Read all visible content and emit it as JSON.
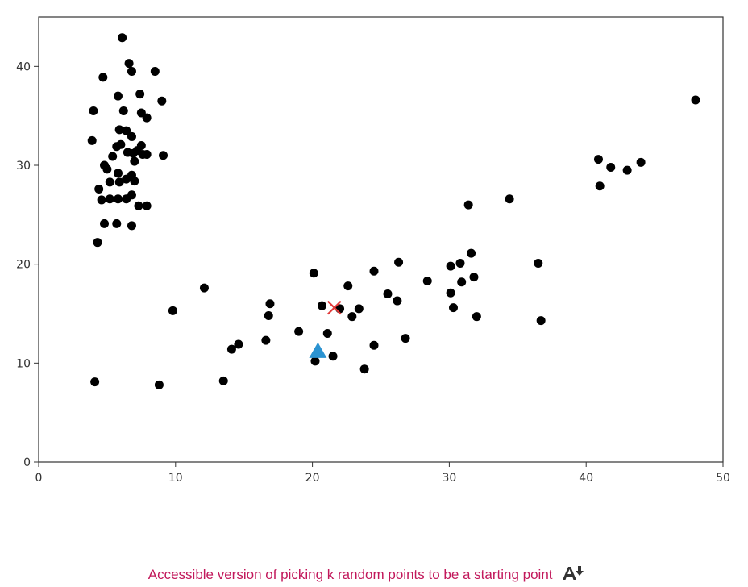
{
  "chart_data": {
    "type": "scatter",
    "title": "",
    "xlabel": "",
    "ylabel": "",
    "xlim": [
      0,
      50
    ],
    "ylim": [
      0,
      45
    ],
    "xticks": [
      0,
      10,
      20,
      30,
      40,
      50
    ],
    "yticks": [
      0,
      10,
      20,
      30,
      40
    ],
    "grid": false,
    "colors": {
      "points": "#000000",
      "triangle": "#2b93d1",
      "cross": "#e23b3b",
      "frame": "#333333"
    },
    "points": [
      [
        6.1,
        42.9
      ],
      [
        6.6,
        40.3
      ],
      [
        6.8,
        39.5
      ],
      [
        8.5,
        39.5
      ],
      [
        4.7,
        38.9
      ],
      [
        5.8,
        37.0
      ],
      [
        7.4,
        37.2
      ],
      [
        9.0,
        36.5
      ],
      [
        4.0,
        35.5
      ],
      [
        6.2,
        35.5
      ],
      [
        7.5,
        35.3
      ],
      [
        7.9,
        34.8
      ],
      [
        5.9,
        33.6
      ],
      [
        6.4,
        33.5
      ],
      [
        6.8,
        32.9
      ],
      [
        3.9,
        32.5
      ],
      [
        6.0,
        32.1
      ],
      [
        5.7,
        31.9
      ],
      [
        7.5,
        32.0
      ],
      [
        7.2,
        31.5
      ],
      [
        6.5,
        31.3
      ],
      [
        6.9,
        31.2
      ],
      [
        7.6,
        31.1
      ],
      [
        7.9,
        31.1
      ],
      [
        5.4,
        30.9
      ],
      [
        9.1,
        31.0
      ],
      [
        7.0,
        30.4
      ],
      [
        4.8,
        30.0
      ],
      [
        5.0,
        29.6
      ],
      [
        5.8,
        29.2
      ],
      [
        6.8,
        29.0
      ],
      [
        6.4,
        28.6
      ],
      [
        7.0,
        28.4
      ],
      [
        5.2,
        28.3
      ],
      [
        5.9,
        28.3
      ],
      [
        4.4,
        27.6
      ],
      [
        6.8,
        27.0
      ],
      [
        5.2,
        26.6
      ],
      [
        5.8,
        26.6
      ],
      [
        4.6,
        26.5
      ],
      [
        6.4,
        26.6
      ],
      [
        7.3,
        25.9
      ],
      [
        7.9,
        25.9
      ],
      [
        4.8,
        24.1
      ],
      [
        5.7,
        24.1
      ],
      [
        6.8,
        23.9
      ],
      [
        4.3,
        22.2
      ],
      [
        4.1,
        8.1
      ],
      [
        8.8,
        7.8
      ],
      [
        9.8,
        15.3
      ],
      [
        12.1,
        17.6
      ],
      [
        13.5,
        8.2
      ],
      [
        14.1,
        11.4
      ],
      [
        14.6,
        11.9
      ],
      [
        16.6,
        12.3
      ],
      [
        16.8,
        14.8
      ],
      [
        16.9,
        16.0
      ],
      [
        19.0,
        13.2
      ],
      [
        20.1,
        19.1
      ],
      [
        20.2,
        10.2
      ],
      [
        20.7,
        15.8
      ],
      [
        21.1,
        13.0
      ],
      [
        21.5,
        10.7
      ],
      [
        22.0,
        15.5
      ],
      [
        22.6,
        17.8
      ],
      [
        22.9,
        14.7
      ],
      [
        23.4,
        15.5
      ],
      [
        23.8,
        9.4
      ],
      [
        24.5,
        19.3
      ],
      [
        24.5,
        11.8
      ],
      [
        25.5,
        17.0
      ],
      [
        26.3,
        20.2
      ],
      [
        26.2,
        16.3
      ],
      [
        26.8,
        12.5
      ],
      [
        28.4,
        18.3
      ],
      [
        30.1,
        19.8
      ],
      [
        30.1,
        17.1
      ],
      [
        30.3,
        15.6
      ],
      [
        30.8,
        20.1
      ],
      [
        30.9,
        18.2
      ],
      [
        31.4,
        26.0
      ],
      [
        31.6,
        21.1
      ],
      [
        31.8,
        18.7
      ],
      [
        32.0,
        14.7
      ],
      [
        34.4,
        26.6
      ],
      [
        36.5,
        20.1
      ],
      [
        36.7,
        14.3
      ],
      [
        40.9,
        30.6
      ],
      [
        41.0,
        27.9
      ],
      [
        41.8,
        29.8
      ],
      [
        43.0,
        29.5
      ],
      [
        44.0,
        30.3
      ],
      [
        48.0,
        36.6
      ]
    ],
    "triangle": [
      20.4,
      11.2
    ],
    "cross": [
      21.6,
      15.6
    ]
  },
  "caption": {
    "text": "Accessible version of picking k random points to be a starting point",
    "icon": "accessibility-download-icon"
  }
}
